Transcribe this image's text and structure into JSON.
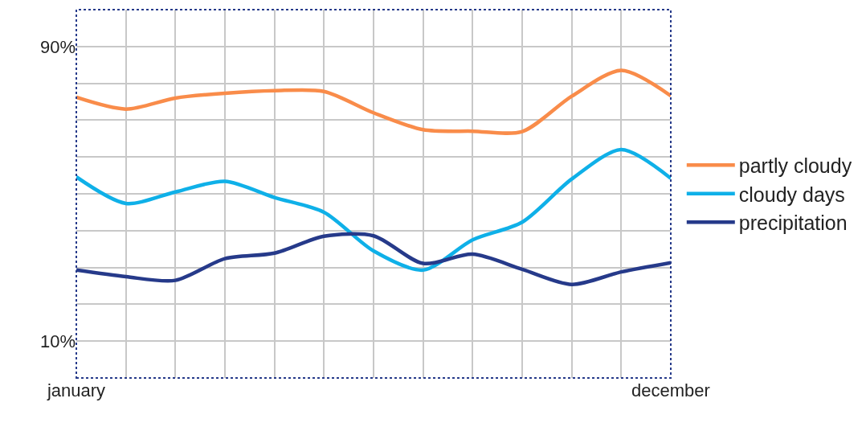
{
  "chart_data": {
    "type": "line",
    "ylim": [
      0,
      100
    ],
    "categories": [
      "january",
      null,
      null,
      null,
      null,
      null,
      null,
      null,
      null,
      null,
      null,
      null,
      "december"
    ],
    "yticks": [
      {
        "value": 10,
        "label": "10%"
      },
      {
        "value": 20,
        "label": null
      },
      {
        "value": 30,
        "label": null
      },
      {
        "value": 40,
        "label": null
      },
      {
        "value": 50,
        "label": null
      },
      {
        "value": 60,
        "label": null
      },
      {
        "value": 70,
        "label": null
      },
      {
        "value": 80,
        "label": null
      },
      {
        "value": 90,
        "label": "90%"
      }
    ],
    "grid": true,
    "legend": "right",
    "marker": "none",
    "line_style": "solid",
    "series": [
      {
        "name": "partly cloudy",
        "color": "#f98c4a",
        "values": [
          76.2,
          73,
          76,
          77.3,
          78,
          77.8,
          72,
          67.4,
          67,
          66.9,
          76.5,
          83.5,
          76.6
        ]
      },
      {
        "name": "cloudy days",
        "color": "#0fb0e8",
        "values": [
          54.6,
          47.4,
          50.5,
          53.4,
          49,
          45,
          34.5,
          29.3,
          37.5,
          42.3,
          54,
          62,
          54.2
        ]
      },
      {
        "name": "precipitation",
        "color": "#263a8a",
        "values": [
          29.3,
          27.5,
          26.5,
          32.4,
          33.9,
          38.5,
          38.6,
          31.1,
          33.6,
          29.5,
          25.4,
          28.8,
          31.3
        ]
      }
    ]
  }
}
